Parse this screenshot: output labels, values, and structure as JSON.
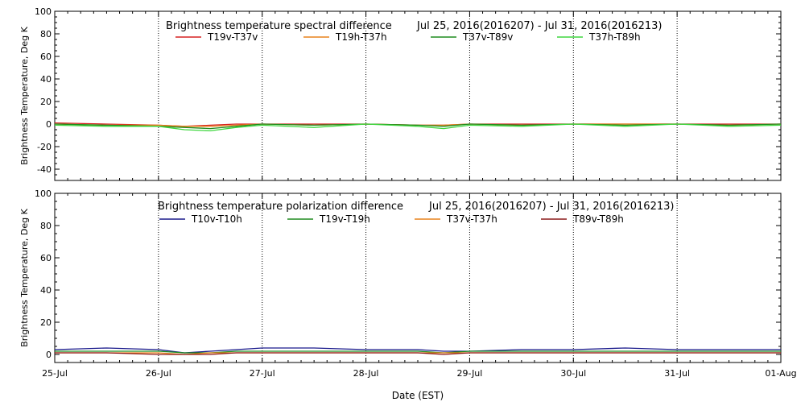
{
  "chart_data": [
    {
      "type": "line",
      "title": "Brightness temperature spectral difference",
      "subtitle": "Jul 25, 2016(2016207) - Jul 31, 2016(2016213)",
      "xlabel": "",
      "ylabel": "Brightness Temperature, Deg K",
      "ylim": [
        -50,
        100
      ],
      "yticks": [
        "-40",
        "-20",
        "0",
        "20",
        "40",
        "60",
        "80",
        "100"
      ],
      "ytick_values": [
        -40,
        -20,
        0,
        20,
        40,
        60,
        80,
        100
      ],
      "grid": "vertical-dotted-daily",
      "legend_placement": "top",
      "x": [
        "25-Jul",
        "25-Jul 12h",
        "26-Jul",
        "26-Jul 6h",
        "26-Jul 12h",
        "26-Jul 18h",
        "27-Jul",
        "27-Jul 12h",
        "28-Jul",
        "28-Jul 12h",
        "28-Jul 18h",
        "29-Jul",
        "29-Jul 12h",
        "30-Jul",
        "30-Jul 12h",
        "31-Jul",
        "31-Jul 12h",
        "01-Aug"
      ],
      "series": [
        {
          "name": "T19v-T37v",
          "color": "#d62020",
          "values": [
            1,
            0,
            -1,
            -2,
            -1,
            0,
            0,
            0,
            0,
            -1,
            -1,
            0,
            0,
            0,
            0,
            0,
            0,
            0
          ]
        },
        {
          "name": "T19h-T37h",
          "color": "#e8821c",
          "values": [
            0,
            -1,
            -1,
            -2,
            -2,
            -1,
            0,
            -1,
            0,
            -1,
            -1,
            0,
            -1,
            0,
            0,
            0,
            -1,
            0
          ]
        },
        {
          "name": "T37v-T89v",
          "color": "#1e8c1e",
          "values": [
            0,
            -1,
            -2,
            -3,
            -4,
            -2,
            0,
            -1,
            0,
            -1,
            -2,
            0,
            -1,
            0,
            -1,
            0,
            -1,
            0
          ]
        },
        {
          "name": "T37h-T89h",
          "color": "#3ed63e",
          "values": [
            -1,
            -2,
            -2,
            -5,
            -6,
            -3,
            -1,
            -3,
            0,
            -2,
            -4,
            -1,
            -2,
            0,
            -2,
            0,
            -2,
            -1
          ]
        }
      ]
    },
    {
      "type": "line",
      "title": "Brightness temperature polarization difference",
      "subtitle": "Jul 25, 2016(2016207) - Jul 31, 2016(2016213)",
      "xlabel": "Date (EST)",
      "ylabel": "Brightness Temperature, Deg K",
      "ylim": [
        -5,
        100
      ],
      "yticks": [
        "0",
        "20",
        "40",
        "60",
        "80",
        "100"
      ],
      "ytick_values": [
        0,
        20,
        40,
        60,
        80,
        100
      ],
      "grid": "vertical-dotted-daily",
      "legend_placement": "top",
      "xticks": [
        "25-Jul",
        "26-Jul",
        "27-Jul",
        "28-Jul",
        "29-Jul",
        "30-Jul",
        "31-Jul",
        "01-Aug"
      ],
      "x": [
        "25-Jul",
        "25-Jul 12h",
        "26-Jul",
        "26-Jul 6h",
        "26-Jul 12h",
        "26-Jul 18h",
        "27-Jul",
        "27-Jul 12h",
        "28-Jul",
        "28-Jul 12h",
        "28-Jul 18h",
        "29-Jul",
        "29-Jul 12h",
        "30-Jul",
        "30-Jul 12h",
        "31-Jul",
        "31-Jul 12h",
        "01-Aug"
      ],
      "series": [
        {
          "name": "T10v-T10h",
          "color": "#1a1a8c",
          "values": [
            3,
            4,
            3,
            1,
            2,
            3,
            4,
            4,
            3,
            3,
            2,
            2,
            3,
            3,
            4,
            3,
            3,
            3
          ]
        },
        {
          "name": "T19v-T19h",
          "color": "#1e8c1e",
          "values": [
            2,
            2,
            2,
            1,
            1,
            2,
            2,
            2,
            2,
            2,
            1,
            2,
            2,
            2,
            2,
            2,
            2,
            2
          ]
        },
        {
          "name": "T37v-T37h",
          "color": "#e8821c",
          "values": [
            1,
            1,
            1,
            0,
            1,
            1,
            1,
            1,
            1,
            1,
            1,
            1,
            1,
            1,
            1,
            1,
            1,
            1
          ]
        },
        {
          "name": "T89v-T89h",
          "color": "#8b1a1a",
          "values": [
            1,
            1,
            0,
            0,
            0,
            1,
            1,
            1,
            1,
            1,
            0,
            1,
            1,
            1,
            1,
            1,
            1,
            1
          ]
        }
      ]
    }
  ]
}
